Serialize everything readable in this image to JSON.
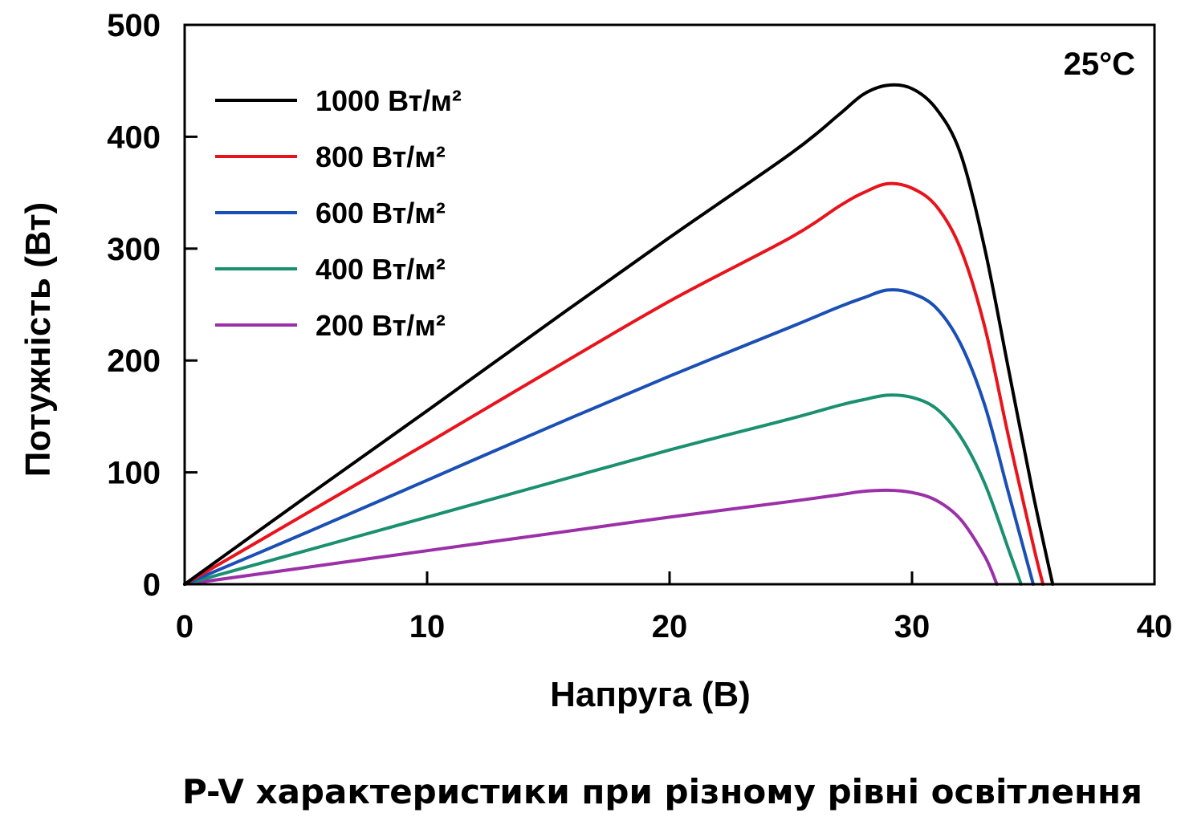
{
  "caption": "P-V характеристики при різному рівні освітлення",
  "chart_data": {
    "type": "line",
    "title": "",
    "annotation": "25°C",
    "xlabel": "Напруга (В)",
    "ylabel": "Потужність (Вт)",
    "xlim": [
      0,
      40
    ],
    "ylim": [
      0,
      500
    ],
    "xticks": [
      0,
      10,
      20,
      30,
      40
    ],
    "yticks": [
      0,
      100,
      200,
      300,
      400,
      500
    ],
    "grid": false,
    "legend_position": "top-left",
    "series": [
      {
        "name": "1000 Вт/м²",
        "color": "#000000",
        "points": [
          [
            0,
            0
          ],
          [
            5,
            78
          ],
          [
            10,
            155
          ],
          [
            15,
            233
          ],
          [
            20,
            310
          ],
          [
            25,
            385
          ],
          [
            27,
            420
          ],
          [
            28,
            438
          ],
          [
            29,
            446
          ],
          [
            30,
            443
          ],
          [
            31,
            425
          ],
          [
            32,
            385
          ],
          [
            33,
            300
          ],
          [
            34,
            190
          ],
          [
            35,
            80
          ],
          [
            35.8,
            0
          ]
        ]
      },
      {
        "name": "800 Вт/м²",
        "color": "#e8141b",
        "points": [
          [
            0,
            0
          ],
          [
            5,
            63
          ],
          [
            10,
            126
          ],
          [
            15,
            190
          ],
          [
            20,
            253
          ],
          [
            25,
            310
          ],
          [
            27,
            338
          ],
          [
            28,
            350
          ],
          [
            29,
            358
          ],
          [
            30,
            354
          ],
          [
            31,
            338
          ],
          [
            32,
            300
          ],
          [
            33,
            230
          ],
          [
            34,
            130
          ],
          [
            35,
            35
          ],
          [
            35.4,
            0
          ]
        ]
      },
      {
        "name": "600 Вт/м²",
        "color": "#1a4fb5",
        "points": [
          [
            0,
            0
          ],
          [
            5,
            46
          ],
          [
            10,
            93
          ],
          [
            15,
            140
          ],
          [
            20,
            186
          ],
          [
            25,
            230
          ],
          [
            27,
            248
          ],
          [
            28,
            256
          ],
          [
            29,
            263
          ],
          [
            30,
            260
          ],
          [
            31,
            247
          ],
          [
            32,
            215
          ],
          [
            33,
            160
          ],
          [
            34,
            80
          ],
          [
            35,
            0
          ]
        ]
      },
      {
        "name": "400 Вт/м²",
        "color": "#1a9070",
        "points": [
          [
            0,
            0
          ],
          [
            5,
            30
          ],
          [
            10,
            60
          ],
          [
            15,
            90
          ],
          [
            20,
            120
          ],
          [
            25,
            148
          ],
          [
            27,
            160
          ],
          [
            28,
            165
          ],
          [
            29,
            169
          ],
          [
            30,
            167
          ],
          [
            31,
            157
          ],
          [
            32,
            132
          ],
          [
            33,
            90
          ],
          [
            34,
            30
          ],
          [
            34.5,
            0
          ]
        ]
      },
      {
        "name": "200 Вт/м²",
        "color": "#9b30a8",
        "points": [
          [
            0,
            0
          ],
          [
            5,
            15
          ],
          [
            10,
            30
          ],
          [
            15,
            45
          ],
          [
            20,
            60
          ],
          [
            25,
            74
          ],
          [
            27,
            80
          ],
          [
            28,
            83
          ],
          [
            29,
            84
          ],
          [
            30,
            82
          ],
          [
            31,
            75
          ],
          [
            32,
            58
          ],
          [
            33,
            25
          ],
          [
            33.5,
            0
          ]
        ]
      }
    ]
  }
}
